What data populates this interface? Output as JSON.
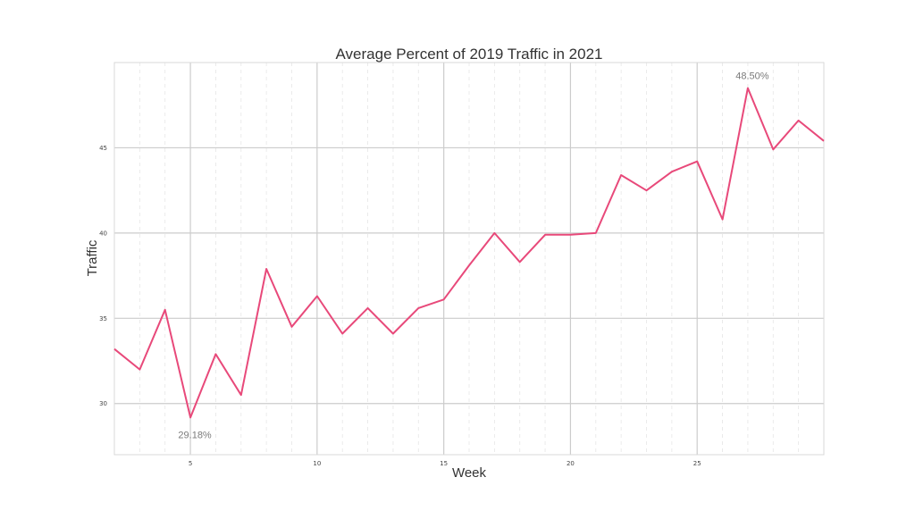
{
  "chart_data": {
    "type": "line",
    "title": "Average Percent of 2019 Traffic in 2021",
    "xlabel": "Week",
    "ylabel": "Traffic",
    "xlim": [
      2,
      30
    ],
    "ylim": [
      27,
      50
    ],
    "xticks": [
      5,
      10,
      15,
      20,
      25
    ],
    "yticks": [
      30,
      35,
      40,
      45
    ],
    "xtick_labels": [
      "5",
      "10",
      "15",
      "20",
      "25"
    ],
    "ytick_labels": [
      "30",
      "35",
      "40",
      "45"
    ],
    "grid": true,
    "line_color": "#e8497a",
    "x": [
      2,
      3,
      4,
      5,
      6,
      7,
      8,
      9,
      10,
      11,
      12,
      13,
      14,
      15,
      16,
      17,
      18,
      19,
      20,
      21,
      22,
      23,
      24,
      25,
      26,
      27,
      28,
      29,
      30
    ],
    "y": [
      33.2,
      32.0,
      35.5,
      29.18,
      32.9,
      30.5,
      37.9,
      34.5,
      36.3,
      34.1,
      35.6,
      34.1,
      35.6,
      36.1,
      38.1,
      40.0,
      38.3,
      39.9,
      39.9,
      40.0,
      43.4,
      42.5,
      43.6,
      44.2,
      40.8,
      48.5,
      44.9,
      46.6,
      45.4
    ],
    "annotations": [
      {
        "x": 5,
        "y": 29.18,
        "text": "29.18%"
      },
      {
        "x": 27,
        "y": 48.5,
        "text": "48.50%"
      }
    ]
  }
}
